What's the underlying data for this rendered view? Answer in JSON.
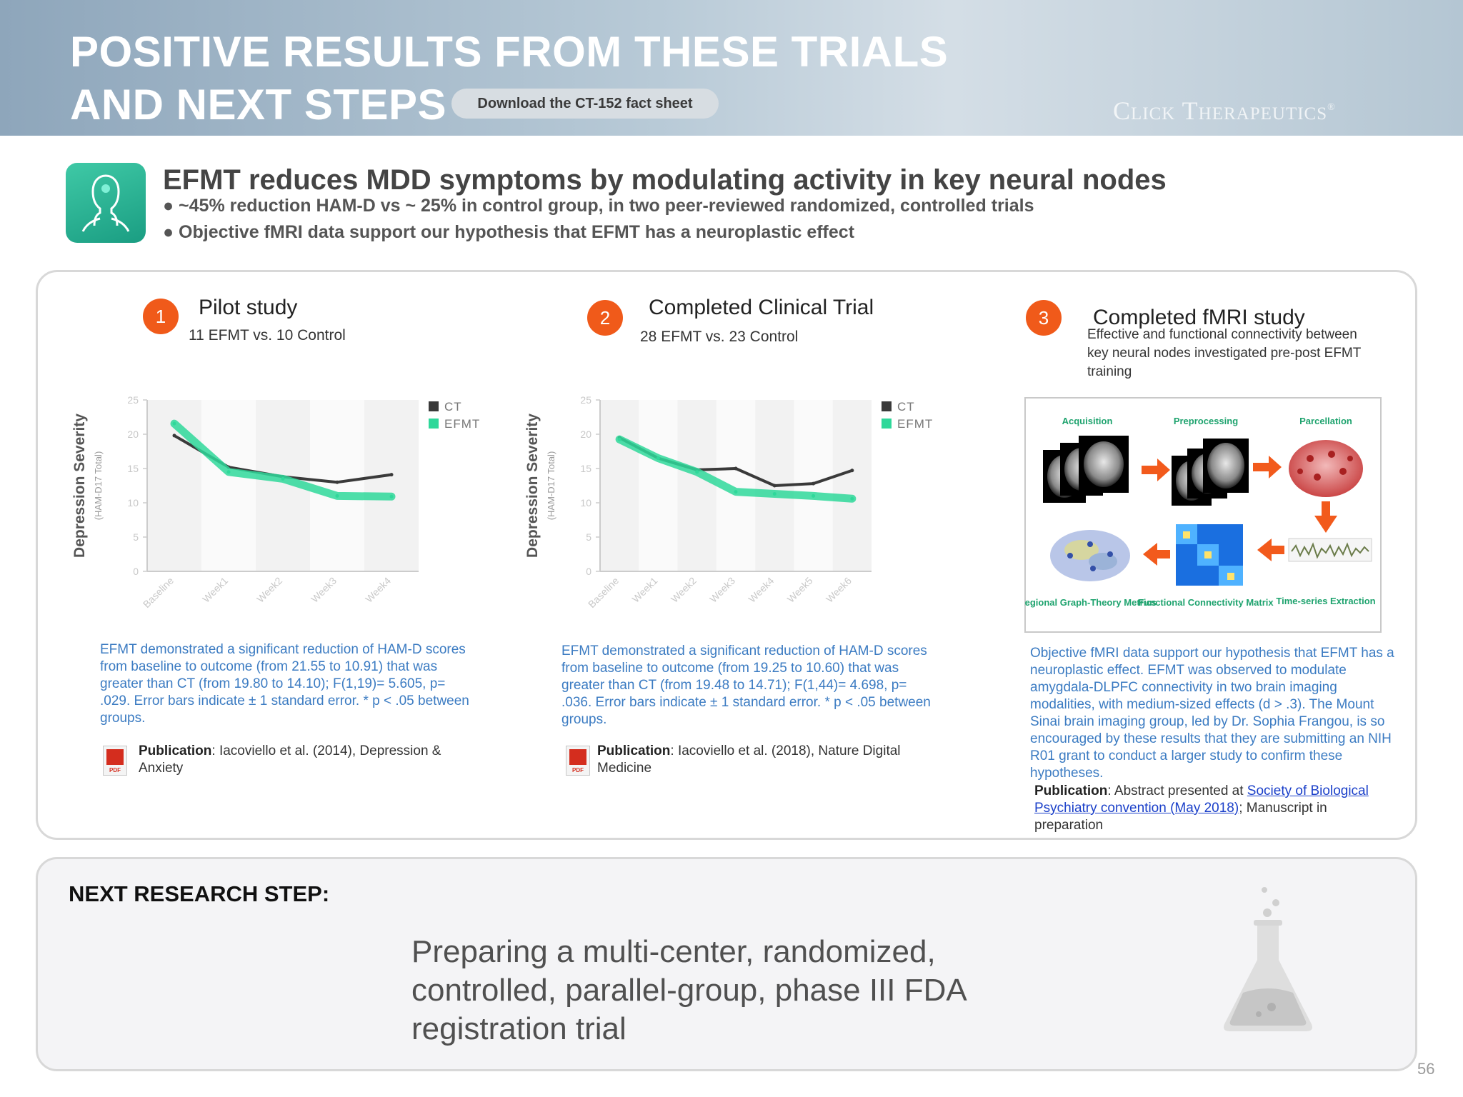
{
  "header": {
    "title_line1": "POSITIVE RESULTS FROM THESE TRIALS",
    "title_line2": "AND NEXT STEPS",
    "download_button": "Download the CT-152 fact sheet",
    "brand": "Click Therapeutics",
    "brand_mark": "®"
  },
  "summary": {
    "headline": "EFMT reduces MDD symptoms by modulating activity in key neural nodes",
    "bullets": [
      "● ~45% reduction HAM-D vs ~ 25% in control group, in two peer-reviewed randomized, controlled trials",
      "● Objective fMRI data support our hypothesis that EFMT has a neuroplastic effect"
    ]
  },
  "studies": [
    {
      "number": "1",
      "title": "Pilot study",
      "subtitle": "11 EFMT vs. 10 Control",
      "body": "EFMT demonstrated a significant reduction of HAM-D scores from baseline to outcome (from 21.55 to 10.91) that was greater than CT (from 19.80 to 14.10); F(1,19)= 5.605, p= .029. Error bars indicate ± 1 standard error. * p < .05 between groups.",
      "pub_label": "Publication",
      "pub_text": ": Iacoviello et al. (2014), Depression & Anxiety"
    },
    {
      "number": "2",
      "title": "Completed Clinical Trial",
      "subtitle": "28 EFMT vs. 23 Control",
      "body": "EFMT demonstrated a significant reduction of HAM-D scores from baseline to outcome (from 19.25 to 10.60) that was greater than CT (from 19.48 to 14.71); F(1,44)= 4.698, p= .036. Error bars indicate ± 1 standard error. * p < .05 between groups.",
      "pub_label": "Publication",
      "pub_text": ": Iacoviello et al. (2018), Nature Digital Medicine"
    },
    {
      "number": "3",
      "title": "Completed fMRI study",
      "desc": "Effective and functional connectivity between key neural nodes investigated pre-post EFMT training",
      "body": "Objective fMRI data support our hypothesis that EFMT has a neuroplastic effect. EFMT was observed to modulate amygdala-DLPFC connectivity in two brain imaging modalities, with medium-sized effects (d > .3). The Mount Sinai brain imaging group, led by Dr. Sophia Frangou, is so encouraged by these results that they are submitting an NIH R01 grant to conduct a larger study to confirm these hypotheses.",
      "pub_label": "Publication",
      "pub_pre": ": Abstract presented at ",
      "pub_link": "Society of Biological Psychiatry convention (May 2018)",
      "pub_post": "; Manuscript in preparation"
    }
  ],
  "pipeline": {
    "steps": [
      "Acquisition",
      "Preprocessing",
      "Parcellation",
      "Time-series Extraction",
      "Functional Connectivity Matrix",
      "Regional Graph-Theory Metrics"
    ]
  },
  "chart_data": [
    {
      "type": "line",
      "ylabel": "Depression Severity",
      "ylabel_sub": "(HAM-D17 Total)",
      "ylim": [
        0,
        25
      ],
      "yticks": [
        0,
        5,
        10,
        15,
        20,
        25
      ],
      "categories": [
        "Baseline",
        "Week1",
        "Week2",
        "Week3",
        "Week4"
      ],
      "series": [
        {
          "name": "CT",
          "color": "#3a3a3a",
          "values": [
            19.8,
            15.2,
            13.8,
            13.0,
            14.1
          ]
        },
        {
          "name": "EFMT",
          "color": "#2fd89a",
          "values": [
            21.55,
            14.5,
            13.5,
            11.0,
            10.91
          ]
        }
      ],
      "legend": "top-right",
      "grid": false
    },
    {
      "type": "line",
      "ylabel": "Depression Severity",
      "ylabel_sub": "(HAM-D17 Total)",
      "ylim": [
        0,
        25
      ],
      "yticks": [
        0,
        5,
        10,
        15,
        20,
        25
      ],
      "categories": [
        "Baseline",
        "Week1",
        "Week2",
        "Week3",
        "Week4",
        "Week5",
        "Week6"
      ],
      "series": [
        {
          "name": "CT",
          "color": "#3a3a3a",
          "values": [
            19.48,
            16.5,
            14.8,
            15.0,
            12.5,
            12.8,
            14.71
          ]
        },
        {
          "name": "EFMT",
          "color": "#2fd89a",
          "values": [
            19.25,
            16.5,
            14.5,
            11.6,
            11.3,
            11.0,
            10.6
          ]
        }
      ],
      "legend": "top-right",
      "grid": false
    }
  ],
  "next_step": {
    "label": "NEXT RESEARCH STEP:",
    "text": "Preparing a multi-center, randomized, controlled, parallel-group, phase III FDA registration trial"
  },
  "page_number": "56"
}
